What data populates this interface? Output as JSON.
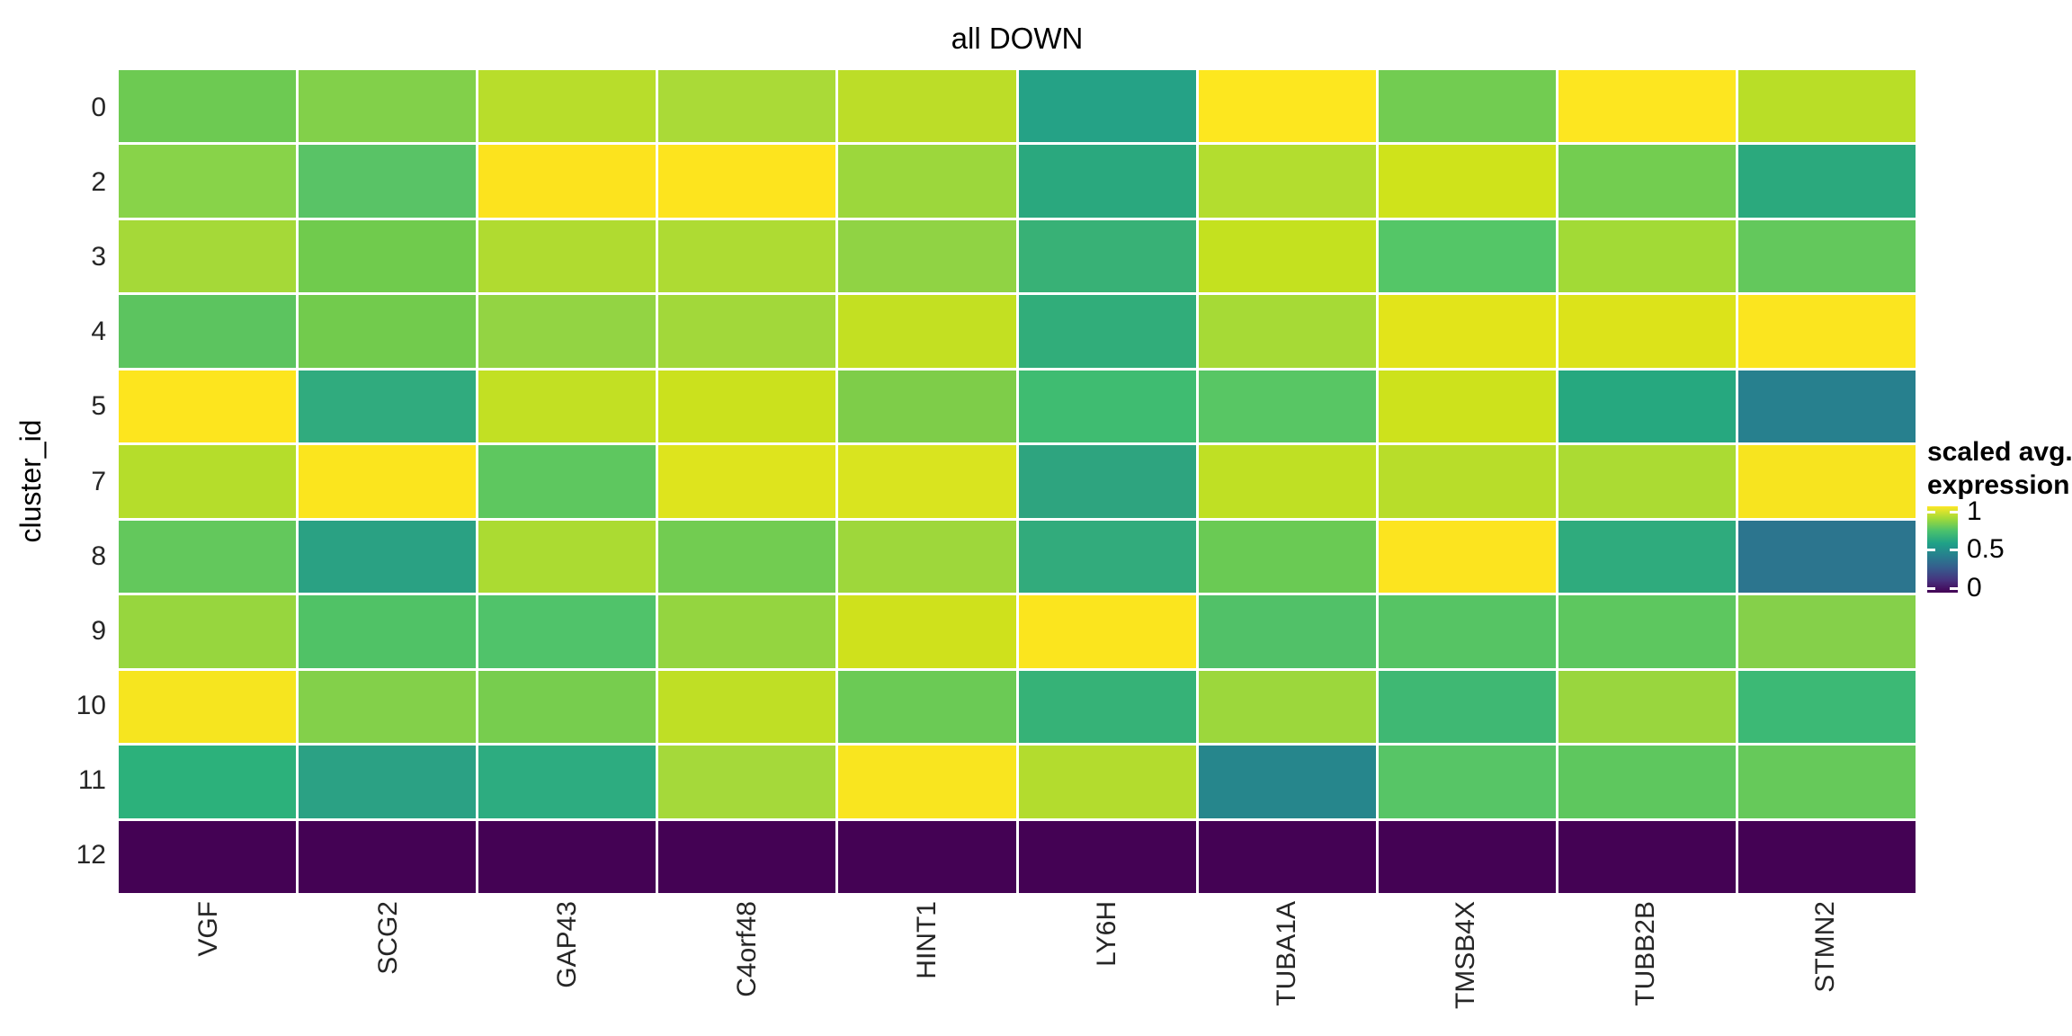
{
  "title": "all DOWN",
  "chart_data": {
    "type": "heatmap",
    "title": "all DOWN",
    "xlabel": "",
    "ylabel": "cluster_id",
    "colormap": "viridis",
    "value_range": [
      0,
      1
    ],
    "x_categories": [
      "VGF",
      "SCG2",
      "GAP43",
      "C4orf48",
      "HINT1",
      "LY6H",
      "TUBA1A",
      "TMSB4X",
      "TUBB2B",
      "STMN2"
    ],
    "y_categories": [
      "0",
      "2",
      "3",
      "4",
      "5",
      "7",
      "8",
      "9",
      "10",
      "11",
      "12"
    ],
    "values": [
      [
        0.78,
        0.81,
        0.89,
        0.86,
        0.89,
        0.62,
        1.0,
        0.79,
        1.0,
        0.89
      ],
      [
        0.82,
        0.73,
        0.99,
        0.99,
        0.84,
        0.62,
        0.88,
        0.92,
        0.79,
        0.62
      ],
      [
        0.86,
        0.78,
        0.87,
        0.87,
        0.83,
        0.66,
        0.91,
        0.73,
        0.86,
        0.76
      ],
      [
        0.75,
        0.78,
        0.83,
        0.85,
        0.91,
        0.64,
        0.86,
        0.95,
        0.94,
        0.99
      ],
      [
        0.99,
        0.65,
        0.91,
        0.92,
        0.8,
        0.69,
        0.74,
        0.92,
        0.62,
        0.44
      ],
      [
        0.88,
        0.99,
        0.76,
        0.94,
        0.93,
        0.61,
        0.9,
        0.89,
        0.87,
        0.98
      ],
      [
        0.76,
        0.6,
        0.87,
        0.79,
        0.85,
        0.63,
        0.77,
        0.99,
        0.63,
        0.4
      ],
      [
        0.84,
        0.72,
        0.73,
        0.83,
        0.92,
        0.99,
        0.72,
        0.73,
        0.76,
        0.81
      ],
      [
        0.98,
        0.81,
        0.8,
        0.9,
        0.78,
        0.66,
        0.84,
        0.68,
        0.84,
        0.67
      ],
      [
        0.64,
        0.6,
        0.62,
        0.86,
        0.98,
        0.88,
        0.47,
        0.74,
        0.76,
        0.77
      ],
      [
        0.0,
        0.0,
        0.0,
        0.0,
        0.0,
        0.0,
        0.0,
        0.0,
        0.0,
        0.0
      ]
    ],
    "cell_colors": [
      [
        "#6dca52",
        "#82d04a",
        "#b8dd2b",
        "#aada37",
        "#bcdd28",
        "#25a286",
        "#fde71f",
        "#72cc51",
        "#fde620",
        "#b9de27"
      ],
      [
        "#88d349",
        "#59c366",
        "#fce31e",
        "#fde41e",
        "#9cd73c",
        "#2aa87e",
        "#b3dd2f",
        "#cfe31b",
        "#73cd50",
        "#2ba97d"
      ],
      [
        "#a5d938",
        "#70cb4d",
        "#b0db30",
        "#aedb33",
        "#90d344",
        "#38b176",
        "#c4e11f",
        "#54c667",
        "#a2da36",
        "#63c85c"
      ],
      [
        "#5cc45f",
        "#72cb4d",
        "#93d443",
        "#a2d83a",
        "#c3e022",
        "#31ad7a",
        "#a6da36",
        "#e2e41a",
        "#dce31a",
        "#fbe51f"
      ],
      [
        "#fde51e",
        "#30ab7e",
        "#c2e023",
        "#cbe11d",
        "#7ecd49",
        "#3fbc71",
        "#58c664",
        "#cde21c",
        "#26a87f",
        "#27808e"
      ],
      [
        "#b5dd2b",
        "#fbe51e",
        "#5ec75f",
        "#dee41d",
        "#d9e41f",
        "#2ea47f",
        "#bfe024",
        "#b8dd2a",
        "#abdb33",
        "#f7e41f"
      ],
      [
        "#63c85c",
        "#2aa183",
        "#abdb32",
        "#72cc51",
        "#9ed73b",
        "#32ab7c",
        "#6aca54",
        "#fce41f",
        "#2fab7d",
        "#2c758e"
      ],
      [
        "#97d63e",
        "#50c266",
        "#50c36a",
        "#94d540",
        "#cfe11c",
        "#fbe51e",
        "#51c168",
        "#56c464",
        "#5dc75f",
        "#85d04a"
      ],
      [
        "#f6e51f",
        "#83d04a",
        "#77cd4e",
        "#bfdf25",
        "#6bca55",
        "#36b277",
        "#9cd73c",
        "#3fb873",
        "#99d63e",
        "#3cb975"
      ],
      [
        "#2cb17b",
        "#2ba184",
        "#2dac80",
        "#a5d93a",
        "#f9e51f",
        "#b3dc2e",
        "#26868c",
        "#57c566",
        "#5ec75e",
        "#66c95a"
      ],
      [
        "#440254",
        "#440254",
        "#440254",
        "#440254",
        "#440254",
        "#440254",
        "#440254",
        "#440254",
        "#440254",
        "#440254"
      ]
    ],
    "legend": {
      "title_line1": "scaled avg.",
      "title_line2": "expression",
      "ticks": [
        {
          "label": "1",
          "pos": 0.06
        },
        {
          "label": "0.5",
          "pos": 0.5
        },
        {
          "label": "0",
          "pos": 0.95
        }
      ],
      "gradient": [
        "#fde725",
        "#a0da39",
        "#4ac16d",
        "#1fa187",
        "#277f8e",
        "#365c8d",
        "#46327e",
        "#440154"
      ]
    }
  }
}
